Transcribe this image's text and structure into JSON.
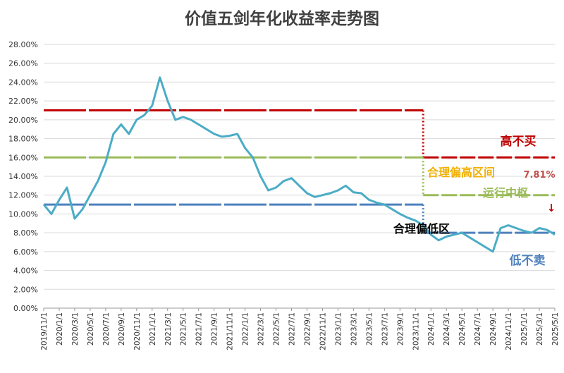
{
  "chart_data": {
    "type": "line",
    "title": "价值五剑年化收益率走势图",
    "x": [
      "2019/11/1",
      "2019/12/1",
      "2020/1/1",
      "2020/2/1",
      "2020/3/1",
      "2020/4/1",
      "2020/5/1",
      "2020/6/1",
      "2020/7/1",
      "2020/8/1",
      "2020/9/1",
      "2020/10/1",
      "2020/11/1",
      "2020/12/1",
      "2021/1/1",
      "2021/2/1",
      "2021/3/1",
      "2021/4/1",
      "2021/5/1",
      "2021/6/1",
      "2021/7/1",
      "2021/8/1",
      "2021/9/1",
      "2021/10/1",
      "2021/11/1",
      "2021/12/1",
      "2022/1/1",
      "2022/2/1",
      "2022/3/1",
      "2022/4/1",
      "2022/5/1",
      "2022/6/1",
      "2022/7/1",
      "2022/8/1",
      "2022/9/1",
      "2022/10/1",
      "2022/11/1",
      "2022/12/1",
      "2023/1/1",
      "2023/2/1",
      "2023/3/1",
      "2023/4/1",
      "2023/5/1",
      "2023/6/1",
      "2023/7/1",
      "2023/8/1",
      "2023/9/1",
      "2023/10/1",
      "2023/11/1",
      "2023/12/1",
      "2024/1/1",
      "2024/2/1",
      "2024/3/1",
      "2024/4/1",
      "2024/5/1",
      "2024/6/1",
      "2024/7/1",
      "2024/8/1",
      "2024/9/1",
      "2024/10/1",
      "2024/11/1",
      "2024/12/1",
      "2025/1/1",
      "2025/2/1",
      "2025/3/1",
      "2025/4/1",
      "2025/5/1"
    ],
    "xticks": [
      "2019/11/1",
      "2020/1/1",
      "2020/3/1",
      "2020/5/1",
      "2020/7/1",
      "2020/9/1",
      "2020/11/1",
      "2021/1/1",
      "2021/3/1",
      "2021/5/1",
      "2021/7/1",
      "2021/9/1",
      "2021/11/1",
      "2022/1/1",
      "2022/3/1",
      "2022/5/1",
      "2022/7/1",
      "2022/9/1",
      "2022/11/1",
      "2023/1/1",
      "2023/3/1",
      "2023/5/1",
      "2023/7/1",
      "2023/9/1",
      "2023/11/1",
      "2024/1/1",
      "2024/3/1",
      "2024/5/1",
      "2024/7/1",
      "2024/9/1",
      "2024/11/1",
      "2025/1/1",
      "2025/3/1",
      "2025/5/1"
    ],
    "series": [
      {
        "color": "#4bacc6",
        "values": [
          11.0,
          10.0,
          11.5,
          12.8,
          9.5,
          10.5,
          12.0,
          13.5,
          15.5,
          18.5,
          19.5,
          18.5,
          20.0,
          20.5,
          21.5,
          24.5,
          22.0,
          20.0,
          20.3,
          20.0,
          19.5,
          19.0,
          18.5,
          18.2,
          18.3,
          18.5,
          17.0,
          16.0,
          14.0,
          12.5,
          12.8,
          13.5,
          13.8,
          13.0,
          12.2,
          11.8,
          12.0,
          12.2,
          12.5,
          13.0,
          12.3,
          12.2,
          11.5,
          11.2,
          11.0,
          10.5,
          10.0,
          9.6,
          9.3,
          8.8,
          7.8,
          7.2,
          7.6,
          7.8,
          8.0,
          7.5,
          7.0,
          6.5,
          6.0,
          8.5,
          8.8,
          8.5,
          8.2,
          8.0,
          8.5,
          8.3,
          7.81
        ]
      }
    ],
    "reference_lines": [
      {
        "color": "#c00000",
        "segments": [
          {
            "from": "2019/11/1",
            "to": "2023/12/1",
            "value": 21
          },
          {
            "from": "2023/12/1",
            "to": "2025/5/1",
            "value": 16
          }
        ]
      },
      {
        "color": "#9bbb59",
        "segments": [
          {
            "from": "2019/11/1",
            "to": "2023/12/1",
            "value": 16
          },
          {
            "from": "2023/12/1",
            "to": "2025/5/1",
            "value": 12
          }
        ]
      },
      {
        "color": "#4f81bd",
        "segments": [
          {
            "from": "2019/11/1",
            "to": "2023/12/1",
            "value": 11
          },
          {
            "from": "2023/12/1",
            "to": "2025/5/1",
            "value": 8
          }
        ]
      }
    ],
    "annotations": [
      {
        "text": "高不买",
        "color": "#c00000"
      },
      {
        "text": "合理偏高区间",
        "color": "#f0b000"
      },
      {
        "text": "7.81%",
        "color": "#c0504d"
      },
      {
        "text": "运行中枢",
        "color": "#9bbb59"
      },
      {
        "text": "↓",
        "color": "#c00000"
      },
      {
        "text": "合理偏低区",
        "color": "#000000"
      },
      {
        "text": "低不卖",
        "color": "#4f81bd"
      }
    ],
    "ylim": [
      0,
      28
    ],
    "yticks": [
      {
        "value": 0,
        "label": "0.00%"
      },
      {
        "value": 2,
        "label": "2.00%"
      },
      {
        "value": 4,
        "label": "4.00%"
      },
      {
        "value": 6,
        "label": "6.00%"
      },
      {
        "value": 8,
        "label": "8.00%"
      },
      {
        "value": 10,
        "label": "10.00%"
      },
      {
        "value": 12,
        "label": "12.00%"
      },
      {
        "value": 14,
        "label": "14.00%"
      },
      {
        "value": 16,
        "label": "16.00%"
      },
      {
        "value": 18,
        "label": "18.00%"
      },
      {
        "value": 20,
        "label": "20.00%"
      },
      {
        "value": 22,
        "label": "22.00%"
      },
      {
        "value": 24,
        "label": "24.00%"
      },
      {
        "value": 26,
        "label": "26.00%"
      },
      {
        "value": 28,
        "label": "28.00%"
      }
    ],
    "grid": true
  }
}
